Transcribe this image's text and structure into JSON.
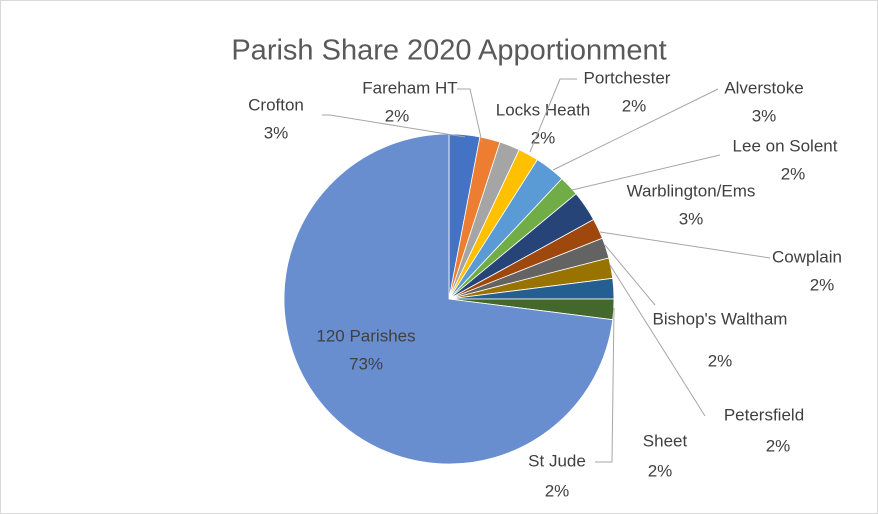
{
  "chart_data": {
    "type": "pie",
    "title": "Parish Share 2020 Apportionment",
    "categories": [
      "Crofton",
      "Fareham HT",
      "Locks Heath",
      "Portchester",
      "Alverstoke",
      "Lee on Solent",
      "Warblington/Ems",
      "Cowplain",
      "Bishop's Waltham",
      "Petersfield",
      "Sheet",
      "St Jude",
      "120 Parishes"
    ],
    "values": [
      3,
      2,
      2,
      2,
      3,
      2,
      3,
      2,
      2,
      2,
      2,
      2,
      73
    ],
    "value_labels": [
      "3%",
      "2%",
      "2%",
      "2%",
      "3%",
      "2%",
      "3%",
      "2%",
      "2%",
      "2%",
      "2%",
      "2%",
      "73%"
    ],
    "colors": [
      "#4472c4",
      "#ed7d31",
      "#a5a5a5",
      "#ffc000",
      "#5b9bd5",
      "#70ad47",
      "#264478",
      "#9e480e",
      "#636363",
      "#997300",
      "#255e91",
      "#43682b",
      "#698ed0"
    ]
  }
}
